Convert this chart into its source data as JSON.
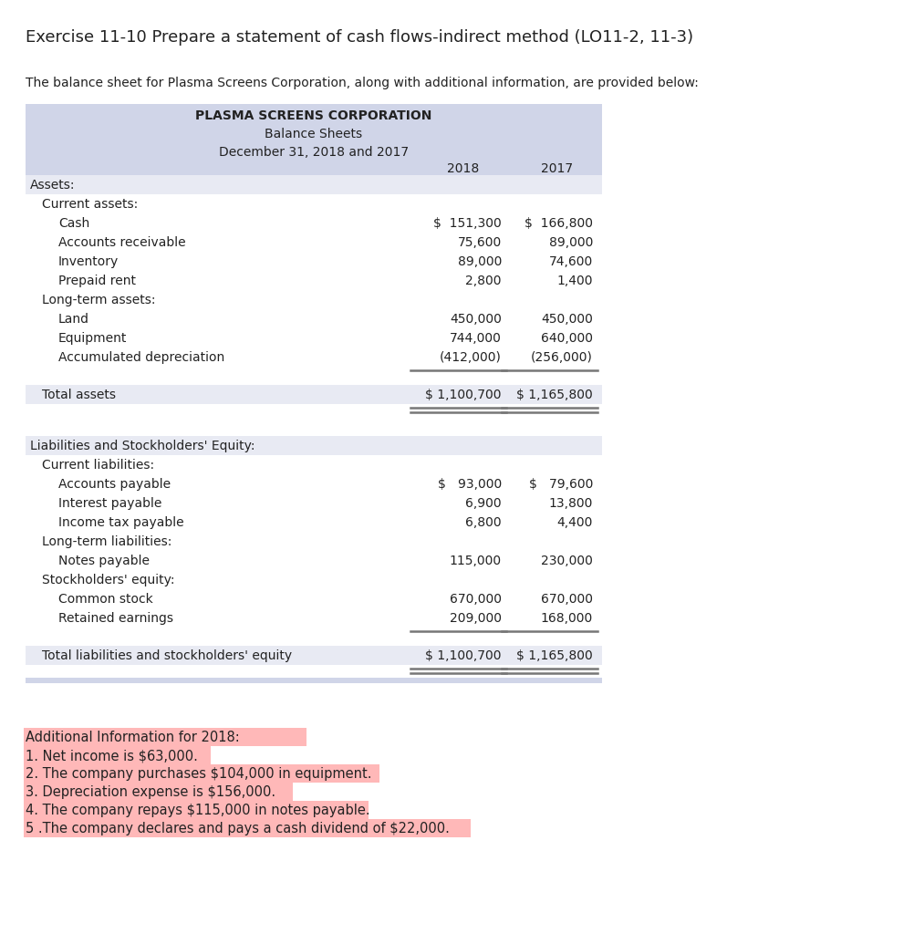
{
  "title": "Exercise 11-10 Prepare a statement of cash flows-indirect method (LO11-2, 11-3)",
  "intro_text": "The balance sheet for Plasma Screens Corporation, along with additional information, are provided below:",
  "company_name": "PLASMA SCREENS CORPORATION",
  "sheet_title": "Balance Sheets",
  "sheet_subtitle": "December 31, 2018 and 2017",
  "col_headers": [
    "2018",
    "2017"
  ],
  "header_bg": "#d0d5e8",
  "table_light_bg": "#e8eaf3",
  "white": "#ffffff",
  "rows": [
    {
      "label": "Assets:",
      "indent": 0,
      "val2018": "",
      "val2017": "",
      "section_header": true,
      "total": false,
      "separator": false,
      "double_line": false,
      "spacer": false,
      "spacer_half": false
    },
    {
      "label": "Current assets:",
      "indent": 1,
      "val2018": "",
      "val2017": "",
      "section_header": false,
      "total": false,
      "separator": false,
      "double_line": false,
      "spacer": false,
      "spacer_half": false
    },
    {
      "label": "Cash",
      "indent": 2,
      "val2018": "$  151,300",
      "val2017": "$  166,800",
      "section_header": false,
      "total": false,
      "separator": false,
      "double_line": false,
      "spacer": false,
      "spacer_half": false
    },
    {
      "label": "Accounts receivable",
      "indent": 2,
      "val2018": "75,600",
      "val2017": "89,000",
      "section_header": false,
      "total": false,
      "separator": false,
      "double_line": false,
      "spacer": false,
      "spacer_half": false
    },
    {
      "label": "Inventory",
      "indent": 2,
      "val2018": "89,000",
      "val2017": "74,600",
      "section_header": false,
      "total": false,
      "separator": false,
      "double_line": false,
      "spacer": false,
      "spacer_half": false
    },
    {
      "label": "Prepaid rent",
      "indent": 2,
      "val2018": "2,800",
      "val2017": "1,400",
      "section_header": false,
      "total": false,
      "separator": false,
      "double_line": false,
      "spacer": false,
      "spacer_half": false
    },
    {
      "label": "Long-term assets:",
      "indent": 1,
      "val2018": "",
      "val2017": "",
      "section_header": false,
      "total": false,
      "separator": false,
      "double_line": false,
      "spacer": false,
      "spacer_half": false
    },
    {
      "label": "Land",
      "indent": 2,
      "val2018": "450,000",
      "val2017": "450,000",
      "section_header": false,
      "total": false,
      "separator": false,
      "double_line": false,
      "spacer": false,
      "spacer_half": false
    },
    {
      "label": "Equipment",
      "indent": 2,
      "val2018": "744,000",
      "val2017": "640,000",
      "section_header": false,
      "total": false,
      "separator": false,
      "double_line": false,
      "spacer": false,
      "spacer_half": false
    },
    {
      "label": "Accumulated depreciation",
      "indent": 2,
      "val2018": "(412,000)",
      "val2017": "(256,000)",
      "section_header": false,
      "total": false,
      "separator": false,
      "double_line": false,
      "spacer": false,
      "spacer_half": false
    },
    {
      "label": "",
      "indent": 0,
      "val2018": "",
      "val2017": "",
      "section_header": false,
      "total": false,
      "separator": true,
      "double_line": false,
      "spacer": false,
      "spacer_half": false
    },
    {
      "label": "",
      "indent": 0,
      "val2018": "",
      "val2017": "",
      "section_header": false,
      "total": false,
      "separator": false,
      "double_line": false,
      "spacer": false,
      "spacer_half": true
    },
    {
      "label": "Total assets",
      "indent": 1,
      "val2018": "$ 1,100,700",
      "val2017": "$ 1,165,800",
      "section_header": false,
      "total": true,
      "separator": false,
      "double_line": false,
      "spacer": false,
      "spacer_half": false
    },
    {
      "label": "",
      "indent": 0,
      "val2018": "",
      "val2017": "",
      "section_header": false,
      "total": false,
      "separator": false,
      "double_line": true,
      "spacer": false,
      "spacer_half": false
    },
    {
      "label": "",
      "indent": 0,
      "val2018": "",
      "val2017": "",
      "section_header": false,
      "total": false,
      "separator": false,
      "double_line": false,
      "spacer": true,
      "spacer_half": false
    },
    {
      "label": "Liabilities and Stockholders' Equity:",
      "indent": 0,
      "val2018": "",
      "val2017": "",
      "section_header": true,
      "total": false,
      "separator": false,
      "double_line": false,
      "spacer": false,
      "spacer_half": false
    },
    {
      "label": "Current liabilities:",
      "indent": 1,
      "val2018": "",
      "val2017": "",
      "section_header": false,
      "total": false,
      "separator": false,
      "double_line": false,
      "spacer": false,
      "spacer_half": false
    },
    {
      "label": "Accounts payable",
      "indent": 2,
      "val2018": "$   93,000",
      "val2017": "$   79,600",
      "section_header": false,
      "total": false,
      "separator": false,
      "double_line": false,
      "spacer": false,
      "spacer_half": false
    },
    {
      "label": "Interest payable",
      "indent": 2,
      "val2018": "6,900",
      "val2017": "13,800",
      "section_header": false,
      "total": false,
      "separator": false,
      "double_line": false,
      "spacer": false,
      "spacer_half": false
    },
    {
      "label": "Income tax payable",
      "indent": 2,
      "val2018": "6,800",
      "val2017": "4,400",
      "section_header": false,
      "total": false,
      "separator": false,
      "double_line": false,
      "spacer": false,
      "spacer_half": false
    },
    {
      "label": "Long-term liabilities:",
      "indent": 1,
      "val2018": "",
      "val2017": "",
      "section_header": false,
      "total": false,
      "separator": false,
      "double_line": false,
      "spacer": false,
      "spacer_half": false
    },
    {
      "label": "Notes payable",
      "indent": 2,
      "val2018": "115,000",
      "val2017": "230,000",
      "section_header": false,
      "total": false,
      "separator": false,
      "double_line": false,
      "spacer": false,
      "spacer_half": false
    },
    {
      "label": "Stockholders' equity:",
      "indent": 1,
      "val2018": "",
      "val2017": "",
      "section_header": false,
      "total": false,
      "separator": false,
      "double_line": false,
      "spacer": false,
      "spacer_half": false
    },
    {
      "label": "Common stock",
      "indent": 2,
      "val2018": "670,000",
      "val2017": "670,000",
      "section_header": false,
      "total": false,
      "separator": false,
      "double_line": false,
      "spacer": false,
      "spacer_half": false
    },
    {
      "label": "Retained earnings",
      "indent": 2,
      "val2018": "209,000",
      "val2017": "168,000",
      "section_header": false,
      "total": false,
      "separator": false,
      "double_line": false,
      "spacer": false,
      "spacer_half": false
    },
    {
      "label": "",
      "indent": 0,
      "val2018": "",
      "val2017": "",
      "section_header": false,
      "total": false,
      "separator": true,
      "double_line": false,
      "spacer": false,
      "spacer_half": false
    },
    {
      "label": "",
      "indent": 0,
      "val2018": "",
      "val2017": "",
      "section_header": false,
      "total": false,
      "separator": false,
      "double_line": false,
      "spacer": false,
      "spacer_half": true
    },
    {
      "label": "Total liabilities and stockholders' equity",
      "indent": 1,
      "val2018": "$ 1,100,700",
      "val2017": "$ 1,165,800",
      "section_header": false,
      "total": true,
      "separator": false,
      "double_line": false,
      "spacer": false,
      "spacer_half": false
    },
    {
      "label": "",
      "indent": 0,
      "val2018": "",
      "val2017": "",
      "section_header": false,
      "total": false,
      "separator": false,
      "double_line": true,
      "spacer": false,
      "spacer_half": false
    }
  ],
  "additional_info_header": "Additional Information for 2018:",
  "additional_info": [
    "1. Net income is $63,000.",
    "2. The company purchases $104,000 in equipment.",
    "3. Depreciation expense is $156,000.",
    "4. The company repays $115,000 in notes payable.",
    "5 .The company declares and pays a cash dividend of $22,000."
  ],
  "highlight_color": "#ffb8b8",
  "bg_color": "#ffffff",
  "text_color": "#222222"
}
